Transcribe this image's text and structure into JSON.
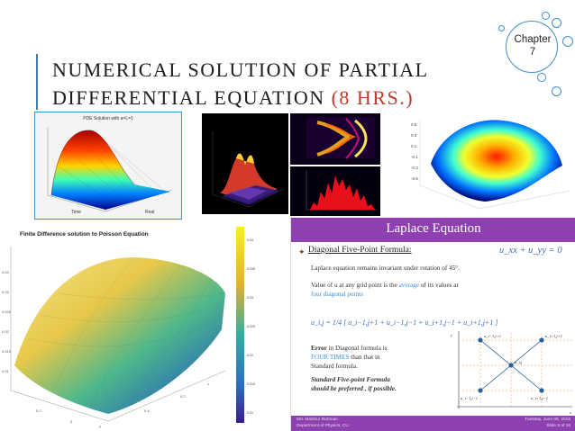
{
  "chapter": {
    "label": "Chapter",
    "number": "7"
  },
  "title": {
    "line1": "NUMERICAL SOLUTION OF PARTIAL",
    "line2": "DIFFERENTIAL EQUATION",
    "hours": "(8 HRS.)"
  },
  "images": {
    "pde_plot": {
      "title": "PDE Solution with a=L=1",
      "xlabel": "Time",
      "ylabel": "Real"
    },
    "poisson_plot": {
      "title": "Finite Difference solution to Poisson Equation"
    }
  },
  "laplace_slide": {
    "title": "Laplace Equation",
    "equation": "u_xx + u_yy = 0",
    "subtitle": "Diagonal Five-Point Formula:",
    "p1": "Laplace equation remains invariant under rotation of 45°.",
    "p2_a": "Value of u at any grid point is the ",
    "p2_avg": "average",
    "p2_b": " of its values at",
    "p2_c": "four diagonal points",
    "formula": "u_i,j = 1/4 [ u_i−1,j+1 + u_i−1,j−1 + u_i+1,j−1 + u_i+1,j+1 ]",
    "err_a": "Error",
    "err_b": " in Diagonal formula is",
    "err_c": "FOUR TIMES",
    "err_d": " than that in",
    "err_e": "Standard formula.",
    "std_a": "Standard Five-point Formula",
    "std_b": "should be preferred , if possible.",
    "grid_labels": {
      "tl": "u_i−1,j+1",
      "tr": "u_i+1,j+1",
      "c": "u_i,j",
      "bl": "u_i−1,j−1",
      "br": "u_i+1,j−1",
      "x": "x",
      "y": "y"
    },
    "footer_left_1": "Md. Mashiur Rahman",
    "footer_left_2": "Department of Physics, CU",
    "footer_right_1": "Tuesday, June 09, 2015",
    "footer_right_2": "Slide 9 of 16"
  },
  "colors": {
    "accent_blue": "#3d8fc4",
    "title_red": "#c0392b",
    "laplace_purple": "#8e3fb0"
  }
}
